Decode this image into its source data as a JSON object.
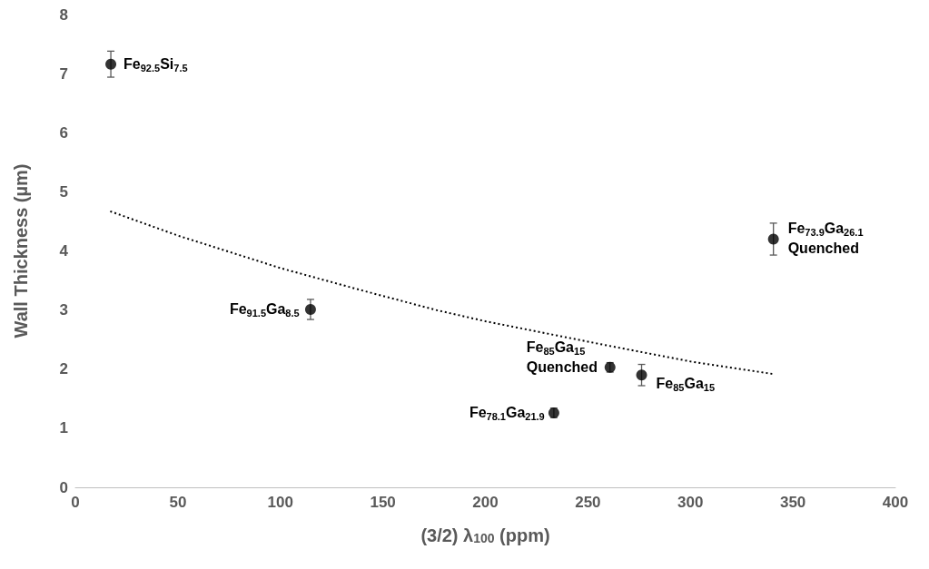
{
  "chart_data": {
    "type": "scatter",
    "xlabel": "(3/2) λ$_{100}$ (ppm)",
    "ylabel": "Wall Thickness (µm)",
    "xlim": [
      0,
      400
    ],
    "xticks": [
      0,
      50,
      100,
      150,
      200,
      250,
      300,
      350,
      400
    ],
    "ylim": [
      0,
      8
    ],
    "yticks": [
      0,
      1,
      2,
      3,
      4,
      5,
      6,
      7,
      8
    ],
    "grid": false,
    "series": [
      {
        "color": "#000000",
        "marker": "circle",
        "x": [
          17.3,
          114.7,
          233.4,
          260.8,
          276.2,
          340.5
        ],
        "values": [
          7.16,
          3.01,
          1.26,
          2.03,
          1.9,
          4.2
        ],
        "errors": [
          0.22,
          0.17,
          0.08,
          0.08,
          0.18,
          0.27
        ]
      },
      {
        "type": "line",
        "color": "#000000",
        "marker": "none",
        "line_style": "dotted",
        "x": [
          17,
          50,
          100,
          140,
          176,
          200,
          258,
          300,
          340
        ],
        "values": [
          4.67,
          4.26,
          3.71,
          3.33,
          3.0,
          2.81,
          2.41,
          2.13,
          1.92
        ]
      }
    ],
    "annotations": [
      {
        "text": "Fe$_{92.5}$Si$_{7.5}$",
        "x": 17.3,
        "y": 7.16
      },
      {
        "text": "Fe$_{91.5}$Ga$_{8.5}$",
        "x": 114.7,
        "y": 3.01
      },
      {
        "text": "Fe$_{78.1}$Ga$_{21.9}$",
        "x": 233.4,
        "y": 1.26
      },
      {
        "text": "Fe$_{85}$Ga$_{15}$\nQuenched",
        "x": 260.8,
        "y": 2.03
      },
      {
        "text": "Fe$_{85}$Ga$_{15}$",
        "x": 276.2,
        "y": 1.9
      },
      {
        "text": "Fe$_{73.9}$Ga$_{26.1}$\nQuenched",
        "x": 340.5,
        "y": 4.2
      }
    ]
  }
}
